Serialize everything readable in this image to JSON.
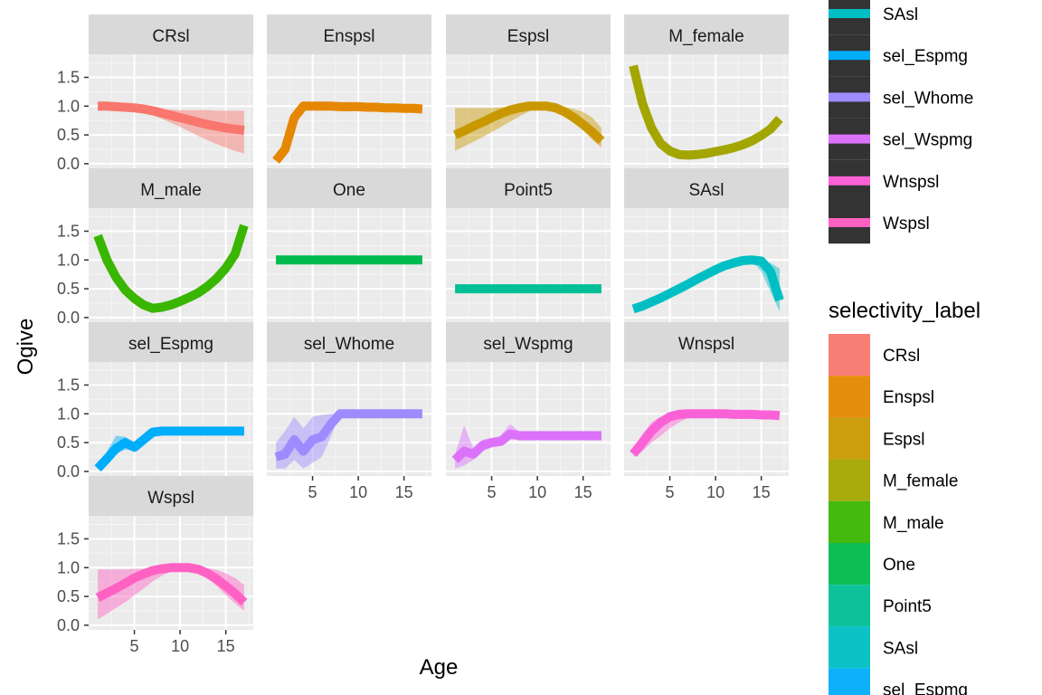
{
  "chart_data": {
    "type": "line",
    "xlabel": "Age",
    "ylabel": "Ogive",
    "xlim": [
      0,
      18
    ],
    "ylim": [
      -0.08,
      1.9
    ],
    "x_ticks": [
      5,
      10,
      15
    ],
    "y_ticks": [
      0.0,
      0.5,
      1.0,
      1.5
    ],
    "y_tick_labels": [
      "0.0",
      "0.5",
      "1.0",
      "1.5"
    ],
    "grid": true,
    "legend_title": "selectivity_label",
    "legend_placement": "right",
    "panels": [
      {
        "label": "CRsl",
        "color": "#F8766D",
        "x": [
          1,
          2,
          3,
          4,
          5,
          6,
          7,
          8,
          9,
          10,
          11,
          12,
          13,
          14,
          15,
          16,
          17
        ],
        "y": [
          1.0,
          1.0,
          0.99,
          0.98,
          0.97,
          0.95,
          0.92,
          0.88,
          0.84,
          0.8,
          0.76,
          0.72,
          0.68,
          0.65,
          0.62,
          0.6,
          0.58
        ],
        "lower": [
          1.0,
          1.0,
          0.98,
          0.96,
          0.93,
          0.89,
          0.84,
          0.78,
          0.71,
          0.64,
          0.56,
          0.48,
          0.41,
          0.34,
          0.28,
          0.22,
          0.18
        ],
        "upper": [
          1.0,
          1.0,
          0.99,
          0.98,
          0.97,
          0.96,
          0.95,
          0.94,
          0.94,
          0.93,
          0.93,
          0.93,
          0.93,
          0.92,
          0.92,
          0.92,
          0.92
        ]
      },
      {
        "label": "Enspsl",
        "color": "#E58700",
        "x": [
          1,
          2,
          3,
          4,
          5,
          6,
          7,
          8,
          9,
          10,
          11,
          12,
          13,
          14,
          15,
          16,
          17
        ],
        "y": [
          0.05,
          0.25,
          0.8,
          1.0,
          1.0,
          1.0,
          1.0,
          0.99,
          0.99,
          0.99,
          0.98,
          0.98,
          0.97,
          0.97,
          0.96,
          0.96,
          0.95
        ],
        "lower": [
          0.05,
          0.25,
          0.8,
          1.0,
          1.0,
          1.0,
          1.0,
          0.99,
          0.99,
          0.99,
          0.98,
          0.98,
          0.97,
          0.97,
          0.96,
          0.96,
          0.95
        ],
        "upper": [
          0.05,
          0.25,
          0.8,
          1.0,
          1.0,
          1.0,
          1.0,
          0.99,
          0.99,
          0.99,
          0.98,
          0.98,
          0.97,
          0.97,
          0.96,
          0.96,
          0.95
        ]
      },
      {
        "label": "Espsl",
        "color": "#C99800",
        "x": [
          1,
          2,
          3,
          4,
          5,
          6,
          7,
          8,
          9,
          10,
          11,
          12,
          13,
          14,
          15,
          16,
          17
        ],
        "y": [
          0.5,
          0.57,
          0.65,
          0.72,
          0.8,
          0.87,
          0.93,
          0.97,
          1.0,
          1.0,
          1.0,
          0.97,
          0.9,
          0.8,
          0.68,
          0.55,
          0.4
        ],
        "lower": [
          0.22,
          0.3,
          0.38,
          0.46,
          0.55,
          0.64,
          0.73,
          0.82,
          0.9,
          0.96,
          0.98,
          0.94,
          0.84,
          0.72,
          0.58,
          0.42,
          0.28
        ],
        "upper": [
          0.97,
          0.97,
          0.97,
          0.97,
          0.97,
          0.98,
          0.98,
          0.99,
          1.0,
          1.0,
          1.0,
          1.0,
          0.98,
          0.95,
          0.9,
          0.8,
          0.62
        ]
      },
      {
        "label": "M_female",
        "color": "#A3A500",
        "x": [
          1,
          2,
          3,
          4,
          5,
          6,
          7,
          8,
          9,
          10,
          11,
          12,
          13,
          14,
          15,
          16,
          17
        ],
        "y": [
          1.7,
          1.05,
          0.62,
          0.35,
          0.22,
          0.16,
          0.15,
          0.16,
          0.18,
          0.21,
          0.24,
          0.28,
          0.33,
          0.4,
          0.49,
          0.6,
          0.78
        ],
        "lower": [
          1.7,
          1.05,
          0.62,
          0.35,
          0.22,
          0.16,
          0.15,
          0.16,
          0.18,
          0.21,
          0.24,
          0.28,
          0.33,
          0.4,
          0.49,
          0.6,
          0.78
        ],
        "upper": [
          1.7,
          1.05,
          0.62,
          0.35,
          0.22,
          0.16,
          0.15,
          0.16,
          0.18,
          0.21,
          0.24,
          0.28,
          0.33,
          0.4,
          0.49,
          0.6,
          0.78
        ]
      },
      {
        "label": "M_male",
        "color": "#39B600",
        "x": [
          1,
          2,
          3,
          4,
          5,
          6,
          7,
          8,
          9,
          10,
          11,
          12,
          13,
          14,
          15,
          16,
          17
        ],
        "y": [
          1.42,
          1.0,
          0.7,
          0.48,
          0.33,
          0.22,
          0.16,
          0.18,
          0.22,
          0.28,
          0.35,
          0.43,
          0.54,
          0.68,
          0.86,
          1.1,
          1.6
        ],
        "lower": [
          1.42,
          1.0,
          0.7,
          0.48,
          0.33,
          0.22,
          0.16,
          0.18,
          0.22,
          0.28,
          0.35,
          0.43,
          0.54,
          0.68,
          0.86,
          1.1,
          1.6
        ],
        "upper": [
          1.42,
          1.0,
          0.7,
          0.48,
          0.33,
          0.22,
          0.16,
          0.18,
          0.22,
          0.28,
          0.35,
          0.43,
          0.54,
          0.68,
          0.86,
          1.1,
          1.6
        ]
      },
      {
        "label": "One",
        "color": "#00BB4E",
        "x": [
          1,
          17
        ],
        "y": [
          1.0,
          1.0
        ],
        "lower": [
          1.0,
          1.0
        ],
        "upper": [
          1.0,
          1.0
        ]
      },
      {
        "label": "Point5",
        "color": "#00BF96",
        "x": [
          1,
          17
        ],
        "y": [
          0.5,
          0.5
        ],
        "lower": [
          0.5,
          0.5
        ],
        "upper": [
          0.5,
          0.5
        ]
      },
      {
        "label": "SAsl",
        "color": "#00BFC4",
        "x": [
          1,
          2,
          3,
          4,
          5,
          6,
          7,
          8,
          9,
          10,
          11,
          12,
          13,
          14,
          15,
          16,
          17
        ],
        "y": [
          0.15,
          0.2,
          0.27,
          0.34,
          0.42,
          0.5,
          0.58,
          0.67,
          0.75,
          0.83,
          0.9,
          0.95,
          0.99,
          1.0,
          0.98,
          0.8,
          0.3
        ],
        "lower": [
          0.15,
          0.2,
          0.27,
          0.34,
          0.42,
          0.5,
          0.58,
          0.67,
          0.75,
          0.82,
          0.88,
          0.93,
          0.96,
          0.98,
          0.8,
          0.45,
          0.1
        ],
        "upper": [
          0.15,
          0.2,
          0.27,
          0.34,
          0.42,
          0.5,
          0.58,
          0.67,
          0.75,
          0.84,
          0.92,
          0.97,
          1.0,
          1.0,
          1.0,
          0.95,
          0.85
        ]
      },
      {
        "label": "sel_Espmg",
        "color": "#00ADFA",
        "x": [
          1,
          2,
          3,
          4,
          5,
          6,
          7,
          8,
          9,
          10,
          11,
          12,
          13,
          14,
          15,
          16,
          17
        ],
        "y": [
          0.05,
          0.22,
          0.4,
          0.5,
          0.42,
          0.55,
          0.68,
          0.7,
          0.7,
          0.7,
          0.7,
          0.7,
          0.7,
          0.7,
          0.7,
          0.7,
          0.7
        ],
        "lower": [
          0.05,
          0.15,
          0.3,
          0.38,
          0.36,
          0.48,
          0.62,
          0.66,
          0.66,
          0.66,
          0.66,
          0.66,
          0.66,
          0.66,
          0.66,
          0.66,
          0.66
        ],
        "upper": [
          0.05,
          0.35,
          0.62,
          0.6,
          0.5,
          0.62,
          0.74,
          0.75,
          0.75,
          0.75,
          0.75,
          0.75,
          0.75,
          0.75,
          0.75,
          0.75,
          0.75
        ]
      },
      {
        "label": "sel_Whome",
        "color": "#9E8BFF",
        "x": [
          1,
          2,
          3,
          4,
          5,
          6,
          7,
          8,
          9,
          10,
          11,
          12,
          13,
          14,
          15,
          16,
          17
        ],
        "y": [
          0.25,
          0.3,
          0.55,
          0.35,
          0.55,
          0.6,
          0.82,
          1.0,
          1.0,
          1.0,
          1.0,
          1.0,
          1.0,
          1.0,
          1.0,
          1.0,
          1.0
        ],
        "lower": [
          0.05,
          0.05,
          0.2,
          0.05,
          0.15,
          0.25,
          0.6,
          1.0,
          1.0,
          1.0,
          1.0,
          1.0,
          1.0,
          1.0,
          1.0,
          1.0,
          1.0
        ],
        "upper": [
          0.5,
          0.7,
          0.95,
          0.75,
          0.95,
          0.98,
          1.0,
          1.0,
          1.0,
          1.0,
          1.0,
          1.0,
          1.0,
          1.0,
          1.0,
          1.0,
          1.0
        ]
      },
      {
        "label": "sel_Wspmg",
        "color": "#DC71FA",
        "x": [
          1,
          2,
          3,
          4,
          5,
          6,
          7,
          8,
          9,
          10,
          11,
          12,
          13,
          14,
          15,
          16,
          17
        ],
        "y": [
          0.2,
          0.35,
          0.3,
          0.45,
          0.5,
          0.52,
          0.65,
          0.62,
          0.62,
          0.62,
          0.62,
          0.62,
          0.62,
          0.62,
          0.62,
          0.62,
          0.62
        ],
        "lower": [
          0.05,
          0.1,
          0.2,
          0.35,
          0.42,
          0.45,
          0.55,
          0.56,
          0.56,
          0.56,
          0.56,
          0.56,
          0.56,
          0.56,
          0.56,
          0.56,
          0.56
        ],
        "upper": [
          0.3,
          0.8,
          0.4,
          0.55,
          0.58,
          0.62,
          0.82,
          0.7,
          0.7,
          0.7,
          0.7,
          0.7,
          0.7,
          0.7,
          0.7,
          0.7,
          0.7
        ]
      },
      {
        "label": "Wnspsl",
        "color": "#FB61D7",
        "x": [
          1,
          2,
          3,
          4,
          5,
          6,
          7,
          8,
          9,
          10,
          11,
          12,
          13,
          14,
          15,
          16,
          17
        ],
        "y": [
          0.3,
          0.5,
          0.7,
          0.85,
          0.95,
          0.99,
          1.0,
          1.0,
          1.0,
          1.0,
          1.0,
          0.99,
          0.99,
          0.99,
          0.98,
          0.98,
          0.97
        ],
        "lower": [
          0.25,
          0.35,
          0.5,
          0.62,
          0.75,
          0.85,
          0.93,
          0.97,
          0.98,
          0.98,
          0.98,
          0.97,
          0.97,
          0.96,
          0.96,
          0.95,
          0.95
        ],
        "upper": [
          0.4,
          0.65,
          0.85,
          0.95,
          1.0,
          1.0,
          1.0,
          1.0,
          1.0,
          1.0,
          1.0,
          1.0,
          1.0,
          1.0,
          1.0,
          1.0,
          1.0
        ]
      },
      {
        "label": "Wspsl",
        "color": "#FF61C3",
        "x": [
          1,
          2,
          3,
          4,
          5,
          6,
          7,
          8,
          9,
          10,
          11,
          12,
          13,
          14,
          15,
          16,
          17
        ],
        "y": [
          0.48,
          0.56,
          0.64,
          0.73,
          0.82,
          0.89,
          0.95,
          0.98,
          1.0,
          1.0,
          1.0,
          0.97,
          0.9,
          0.8,
          0.68,
          0.55,
          0.4
        ],
        "lower": [
          0.1,
          0.2,
          0.3,
          0.4,
          0.52,
          0.64,
          0.76,
          0.86,
          0.93,
          0.97,
          0.97,
          0.93,
          0.82,
          0.68,
          0.52,
          0.38,
          0.25
        ],
        "upper": [
          0.97,
          0.97,
          0.97,
          0.97,
          0.98,
          0.98,
          0.99,
          1.0,
          1.0,
          1.0,
          1.0,
          1.0,
          0.99,
          0.96,
          0.9,
          0.82,
          0.7
        ]
      }
    ],
    "legend_top_entries": [
      "SAsl",
      "sel_Espmg",
      "sel_Whome",
      "sel_Wspmg",
      "Wnspsl",
      "Wspsl"
    ],
    "legend_bottom_entries": [
      "CRsl",
      "Enspsl",
      "Espsl",
      "M_female",
      "M_male",
      "One",
      "Point5",
      "SAsl",
      "sel_Espmg"
    ]
  }
}
